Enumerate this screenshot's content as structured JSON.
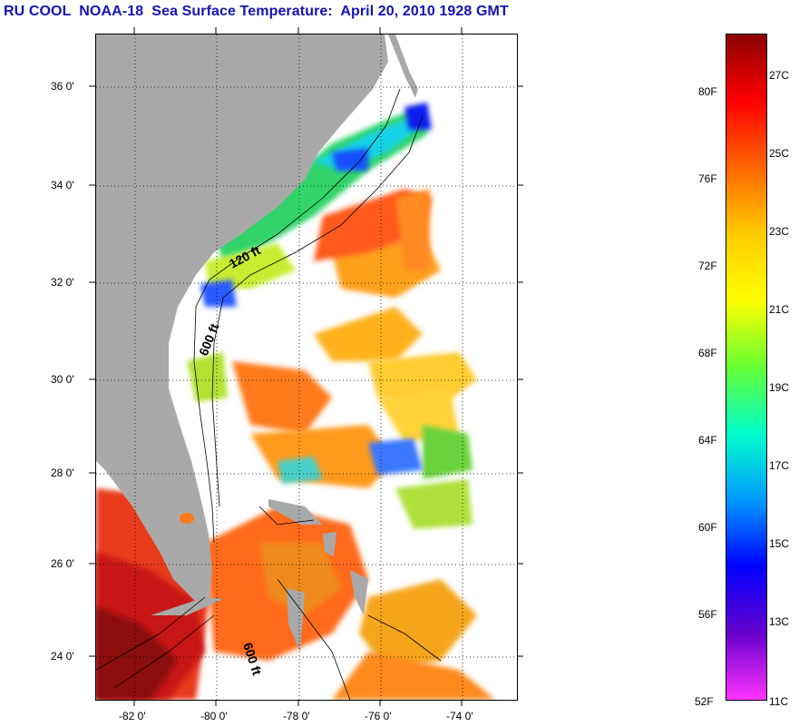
{
  "title": "RU COOL  NOAA-18  Sea Surface Temperature:  April 20, 2010 1928 GMT",
  "map": {
    "lat_labels": [
      "36 0'",
      "34 0'",
      "32 0'",
      "30 0'",
      "28 0'",
      "26 0'",
      "24 0'"
    ],
    "lon_labels": [
      "-82 0'",
      "-80 0'",
      "-78 0'",
      "-76 0'",
      "-74 0'"
    ],
    "contour_labels": [
      "120 ft",
      "600 ft",
      "600 ft"
    ],
    "colors": {
      "land": "#a9a9a9",
      "ocean_missing": "#ffffff",
      "contour": "#000000"
    }
  },
  "colorbar": {
    "fahrenheit_labels": [
      "80F",
      "76F",
      "72F",
      "68F",
      "64F",
      "60F",
      "56F",
      "52F"
    ],
    "celsius_labels": [
      "27C",
      "25C",
      "23C",
      "21C",
      "19C",
      "17C",
      "15C",
      "13C",
      "11C"
    ],
    "colors": [
      "#8b0000",
      "#ff0000",
      "#ff6600",
      "#ffcc00",
      "#ffff00",
      "#66ff33",
      "#00ffcc",
      "#0099ff",
      "#0000ff",
      "#6600cc",
      "#ff33ff"
    ]
  }
}
